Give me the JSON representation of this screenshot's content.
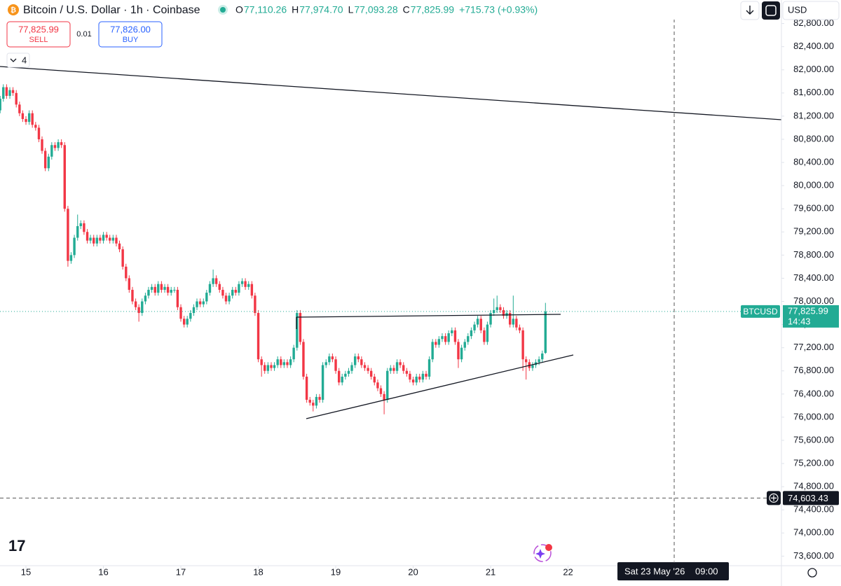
{
  "header": {
    "title": "Bitcoin / U.S. Dollar · 1h · Coinbase",
    "ohlc": [
      {
        "key": "O",
        "value": "77,110.26"
      },
      {
        "key": "H",
        "value": "77,974.70"
      },
      {
        "key": "L",
        "value": "77,093.28"
      },
      {
        "key": "C",
        "value": "77,825.99"
      }
    ],
    "change": "+715.73 (+0.93%)",
    "sell_price": "77,825.99",
    "sell": "SELL",
    "spread": "0.01",
    "buy_price": "77,826.00",
    "buy": "BUY",
    "indicators_count": "4",
    "currency": "USD"
  },
  "chart_data": {
    "type": "candlestick",
    "up_color": "#22ab94",
    "down_color": "#f23645",
    "x": [
      14.667,
      14.708,
      14.75,
      14.792,
      14.833,
      14.875,
      14.917,
      14.958,
      15,
      15.042,
      15.083,
      15.125,
      15.167,
      15.208,
      15.25,
      15.292,
      15.333,
      15.375,
      15.417,
      15.458,
      15.5,
      15.542,
      15.583,
      15.625,
      15.667,
      15.708,
      15.75,
      15.792,
      15.833,
      15.875,
      15.917,
      15.958,
      16,
      16.042,
      16.083,
      16.125,
      16.167,
      16.208,
      16.25,
      16.292,
      16.333,
      16.375,
      16.417,
      16.458,
      16.5,
      16.542,
      16.583,
      16.625,
      16.667,
      16.708,
      16.75,
      16.792,
      16.833,
      16.875,
      16.917,
      16.958,
      17,
      17.042,
      17.083,
      17.125,
      17.167,
      17.208,
      17.25,
      17.292,
      17.333,
      17.375,
      17.417,
      17.458,
      17.5,
      17.542,
      17.583,
      17.625,
      17.667,
      17.708,
      17.75,
      17.792,
      17.833,
      17.875,
      17.917,
      17.958,
      18,
      18.042,
      18.083,
      18.125,
      18.167,
      18.208,
      18.25,
      18.292,
      18.333,
      18.375,
      18.417,
      18.458,
      18.5,
      18.542,
      18.583,
      18.625,
      18.667,
      18.708,
      18.75,
      18.792,
      18.833,
      18.875,
      18.917,
      18.958,
      19,
      19.042,
      19.083,
      19.125,
      19.167,
      19.208,
      19.25,
      19.292,
      19.333,
      19.375,
      19.417,
      19.458,
      19.5,
      19.542,
      19.583,
      19.625,
      19.667,
      19.708,
      19.75,
      19.792,
      19.833,
      19.875,
      19.917,
      19.958,
      20,
      20.042,
      20.083,
      20.125,
      20.167,
      20.208,
      20.25,
      20.292,
      20.333,
      20.375,
      20.417,
      20.458,
      20.5,
      20.542,
      20.583,
      20.625,
      20.667,
      20.708,
      20.75,
      20.792,
      20.833,
      20.875,
      20.917,
      20.958,
      21,
      21.042,
      21.083,
      21.125,
      21.167,
      21.208,
      21.25,
      21.292,
      21.333,
      21.375,
      21.417,
      21.458,
      21.5,
      21.542,
      21.583,
      21.625,
      21.667,
      21.708
    ],
    "open": [
      81300,
      81500,
      81700,
      81550,
      81650,
      81600,
      81400,
      81250,
      81150,
      81100,
      81250,
      81050,
      81000,
      80800,
      80600,
      80300,
      80500,
      80700,
      80650,
      80750,
      80700,
      79600,
      78700,
      78800,
      79100,
      79300,
      79350,
      79200,
      79050,
      79100,
      79000,
      79100,
      79050,
      79150,
      79100,
      79050,
      79100,
      79000,
      78900,
      78600,
      78400,
      78200,
      78000,
      77900,
      77800,
      78000,
      78100,
      78200,
      78250,
      78150,
      78300,
      78200,
      78250,
      78150,
      78200,
      78200,
      77900,
      77700,
      77600,
      77700,
      77800,
      77900,
      78000,
      77950,
      78000,
      78150,
      78300,
      78400,
      78300,
      78200,
      78100,
      78000,
      78100,
      78200,
      78150,
      78300,
      78350,
      78250,
      78300,
      78100,
      77800,
      77000,
      76900,
      76800,
      76900,
      76850,
      76900,
      77000,
      76900,
      76950,
      76900,
      77000,
      77200,
      77800,
      77300,
      76700,
      76300,
      76250,
      76200,
      76350,
      76300,
      76900,
      76950,
      77050,
      77000,
      76800,
      76600,
      76700,
      76750,
      76800,
      76900,
      77050,
      77000,
      76900,
      76850,
      76800,
      76700,
      76600,
      76500,
      76400,
      76300,
      76800,
      76850,
      76800,
      76950,
      76900,
      76800,
      76750,
      76650,
      76600,
      76700,
      76650,
      76750,
      76700,
      77000,
      77300,
      77250,
      77350,
      77400,
      77300,
      77450,
      77500,
      77300,
      77000,
      77200,
      77300,
      77400,
      77500,
      77600,
      77700,
      77500,
      77300,
      77600,
      77800,
      77850,
      77900,
      77850,
      77750,
      77800,
      77600,
      77700,
      77550,
      77500,
      77000,
      76950,
      76850,
      76900,
      76950,
      77000,
      77110.26
    ],
    "high": [
      81550,
      81750,
      81750,
      81700,
      81700,
      81650,
      81450,
      81300,
      81200,
      81300,
      81300,
      81100,
      81050,
      80850,
      80650,
      80550,
      80750,
      80750,
      80800,
      80800,
      80750,
      79650,
      78850,
      79150,
      79500,
      79400,
      79400,
      79250,
      79150,
      79150,
      79150,
      79150,
      79200,
      79200,
      79150,
      79150,
      79150,
      79050,
      78950,
      78650,
      78450,
      78250,
      78050,
      77950,
      78050,
      78150,
      78250,
      78300,
      78300,
      78350,
      78350,
      78300,
      78300,
      78250,
      78250,
      78250,
      77950,
      77750,
      77750,
      77850,
      77950,
      78050,
      78050,
      78050,
      78200,
      78350,
      78550,
      78450,
      78350,
      78250,
      78150,
      78150,
      78250,
      78250,
      78350,
      78400,
      78400,
      78350,
      78350,
      78150,
      77850,
      77050,
      76950,
      76950,
      76950,
      76950,
      77050,
      77050,
      77000,
      77000,
      77050,
      77250,
      77850,
      77850,
      77350,
      76750,
      76350,
      76300,
      76400,
      76400,
      76950,
      77000,
      77100,
      77100,
      77050,
      76850,
      76750,
      76800,
      76850,
      76950,
      77100,
      77100,
      77050,
      76950,
      76900,
      76850,
      76750,
      76650,
      76550,
      76450,
      76850,
      76900,
      76900,
      77000,
      77000,
      76950,
      76850,
      76800,
      76700,
      76750,
      76750,
      76800,
      76800,
      77050,
      77350,
      77350,
      77400,
      77450,
      77450,
      77500,
      77550,
      77550,
      77350,
      77250,
      77350,
      77450,
      77550,
      77650,
      77750,
      77750,
      77550,
      77650,
      77850,
      78050,
      78100,
      77950,
      77900,
      77850,
      77850,
      78100,
      77750,
      77600,
      77550,
      77050,
      77000,
      76950,
      77000,
      77050,
      77150,
      77974.7
    ],
    "low": [
      81250,
      81450,
      81500,
      81500,
      81550,
      81350,
      81200,
      81100,
      81050,
      81050,
      81000,
      80950,
      80750,
      80550,
      80250,
      80250,
      80450,
      80600,
      80600,
      80650,
      79550,
      78600,
      78650,
      78750,
      79050,
      79250,
      79150,
      79000,
      79000,
      78950,
      78950,
      79000,
      79000,
      79050,
      79000,
      79000,
      78950,
      78850,
      78550,
      78350,
      78150,
      77950,
      77850,
      77650,
      77750,
      77950,
      78050,
      78150,
      78100,
      78100,
      78150,
      78150,
      78100,
      78100,
      78150,
      77850,
      77650,
      77550,
      77550,
      77650,
      77750,
      77850,
      77900,
      77900,
      77950,
      78100,
      78250,
      78250,
      78150,
      78050,
      77950,
      77950,
      78050,
      78100,
      78100,
      78250,
      78200,
      78200,
      78050,
      77750,
      76950,
      76700,
      76750,
      76750,
      76800,
      76800,
      76850,
      76850,
      76850,
      76850,
      76850,
      76950,
      77150,
      77250,
      76650,
      76250,
      76200,
      76100,
      76150,
      76250,
      76250,
      76850,
      76900,
      76950,
      76750,
      76550,
      76550,
      76650,
      76700,
      76750,
      76850,
      76950,
      76850,
      76800,
      76750,
      76650,
      76550,
      76450,
      76350,
      76050,
      76250,
      76750,
      76750,
      76750,
      76850,
      76750,
      76700,
      76600,
      76550,
      76550,
      76600,
      76600,
      76650,
      76650,
      76950,
      77200,
      77200,
      77300,
      77250,
      77250,
      77400,
      77250,
      76850,
      76950,
      77150,
      77250,
      77350,
      77450,
      77550,
      77450,
      77250,
      77250,
      77550,
      77750,
      77800,
      77800,
      77700,
      77700,
      77550,
      77550,
      77500,
      77450,
      76800,
      76650,
      76800,
      76800,
      76850,
      76900,
      76950,
      77093.28
    ],
    "close": [
      81500,
      81700,
      81550,
      81650,
      81600,
      81400,
      81250,
      81150,
      81100,
      81250,
      81050,
      81000,
      80800,
      80600,
      80300,
      80500,
      80700,
      80650,
      80750,
      80700,
      79600,
      78700,
      78800,
      79100,
      79300,
      79350,
      79200,
      79050,
      79100,
      79000,
      79100,
      79050,
      79150,
      79100,
      79050,
      79100,
      79000,
      78900,
      78600,
      78400,
      78200,
      78000,
      77900,
      77800,
      78000,
      78100,
      78200,
      78250,
      78150,
      78300,
      78200,
      78250,
      78150,
      78200,
      78200,
      77900,
      77700,
      77600,
      77700,
      77800,
      77900,
      78000,
      77950,
      78000,
      78150,
      78300,
      78400,
      78300,
      78200,
      78100,
      78000,
      78100,
      78200,
      78150,
      78300,
      78350,
      78250,
      78300,
      78100,
      77800,
      77000,
      76900,
      76800,
      76900,
      76850,
      76900,
      77000,
      76900,
      76950,
      76900,
      77000,
      77200,
      77800,
      77300,
      76700,
      76300,
      76250,
      76200,
      76350,
      76300,
      76900,
      76950,
      77050,
      77000,
      76800,
      76600,
      76700,
      76750,
      76800,
      76900,
      77050,
      77000,
      76900,
      76850,
      76800,
      76700,
      76600,
      76500,
      76400,
      76300,
      76800,
      76850,
      76800,
      76950,
      76900,
      76800,
      76750,
      76650,
      76600,
      76700,
      76650,
      76750,
      76700,
      77000,
      77300,
      77250,
      77350,
      77400,
      77300,
      77450,
      77500,
      77300,
      77000,
      77200,
      77300,
      77400,
      77500,
      77600,
      77700,
      77500,
      77300,
      77600,
      77800,
      77850,
      77900,
      77850,
      77750,
      77800,
      77600,
      77700,
      77550,
      77500,
      77000,
      76950,
      76850,
      76900,
      76950,
      77000,
      77100,
      77825.99
    ],
    "xlim": [
      14.665,
      24.755
    ],
    "xticks": [
      15,
      16,
      17,
      18,
      19,
      20,
      21,
      22
    ],
    "ylim": [
      73435,
      83206
    ],
    "yticks": [
      {
        "value": 73600,
        "label": "73,600.00"
      },
      {
        "value": 74000,
        "label": "74,000.00"
      },
      {
        "value": 74400,
        "label": "74,400.00"
      },
      {
        "value": 74800,
        "label": "74,800.00"
      },
      {
        "value": 75200,
        "label": "75,200.00"
      },
      {
        "value": 75600,
        "label": "75,600.00"
      },
      {
        "value": 76000,
        "label": "76,000.00"
      },
      {
        "value": 76400,
        "label": "76,400.00"
      },
      {
        "value": 76800,
        "label": "76,800.00"
      },
      {
        "value": 77200,
        "label": "77,200.00"
      },
      {
        "value": 77600,
        "label": "77,600.00"
      },
      {
        "value": 78000,
        "label": "78,000.00"
      },
      {
        "value": 78400,
        "label": "78,400.00"
      },
      {
        "value": 78800,
        "label": "78,800.00"
      },
      {
        "value": 79200,
        "label": "79,200.00"
      },
      {
        "value": 79600,
        "label": "79,600.00"
      },
      {
        "value": 80000,
        "label": "80,000.00"
      },
      {
        "value": 80400,
        "label": "80,400.00"
      },
      {
        "value": 80800,
        "label": "80,800.00"
      },
      {
        "value": 81200,
        "label": "81,200.00"
      },
      {
        "value": 81600,
        "label": "81,600.00"
      },
      {
        "value": 82000,
        "label": "82,000.00"
      },
      {
        "value": 82400,
        "label": "82,400.00"
      },
      {
        "value": 82800,
        "label": "82,800.00"
      }
    ],
    "grid": false,
    "last_price": {
      "symbol": "BTCUSD",
      "value": 77825.99,
      "label": "77,825.99",
      "countdown": "14:43"
    },
    "crosshair": {
      "value": 74603.43,
      "label": "74,603.43",
      "date": "Sat 23 May '26",
      "time": "09:00"
    }
  }
}
